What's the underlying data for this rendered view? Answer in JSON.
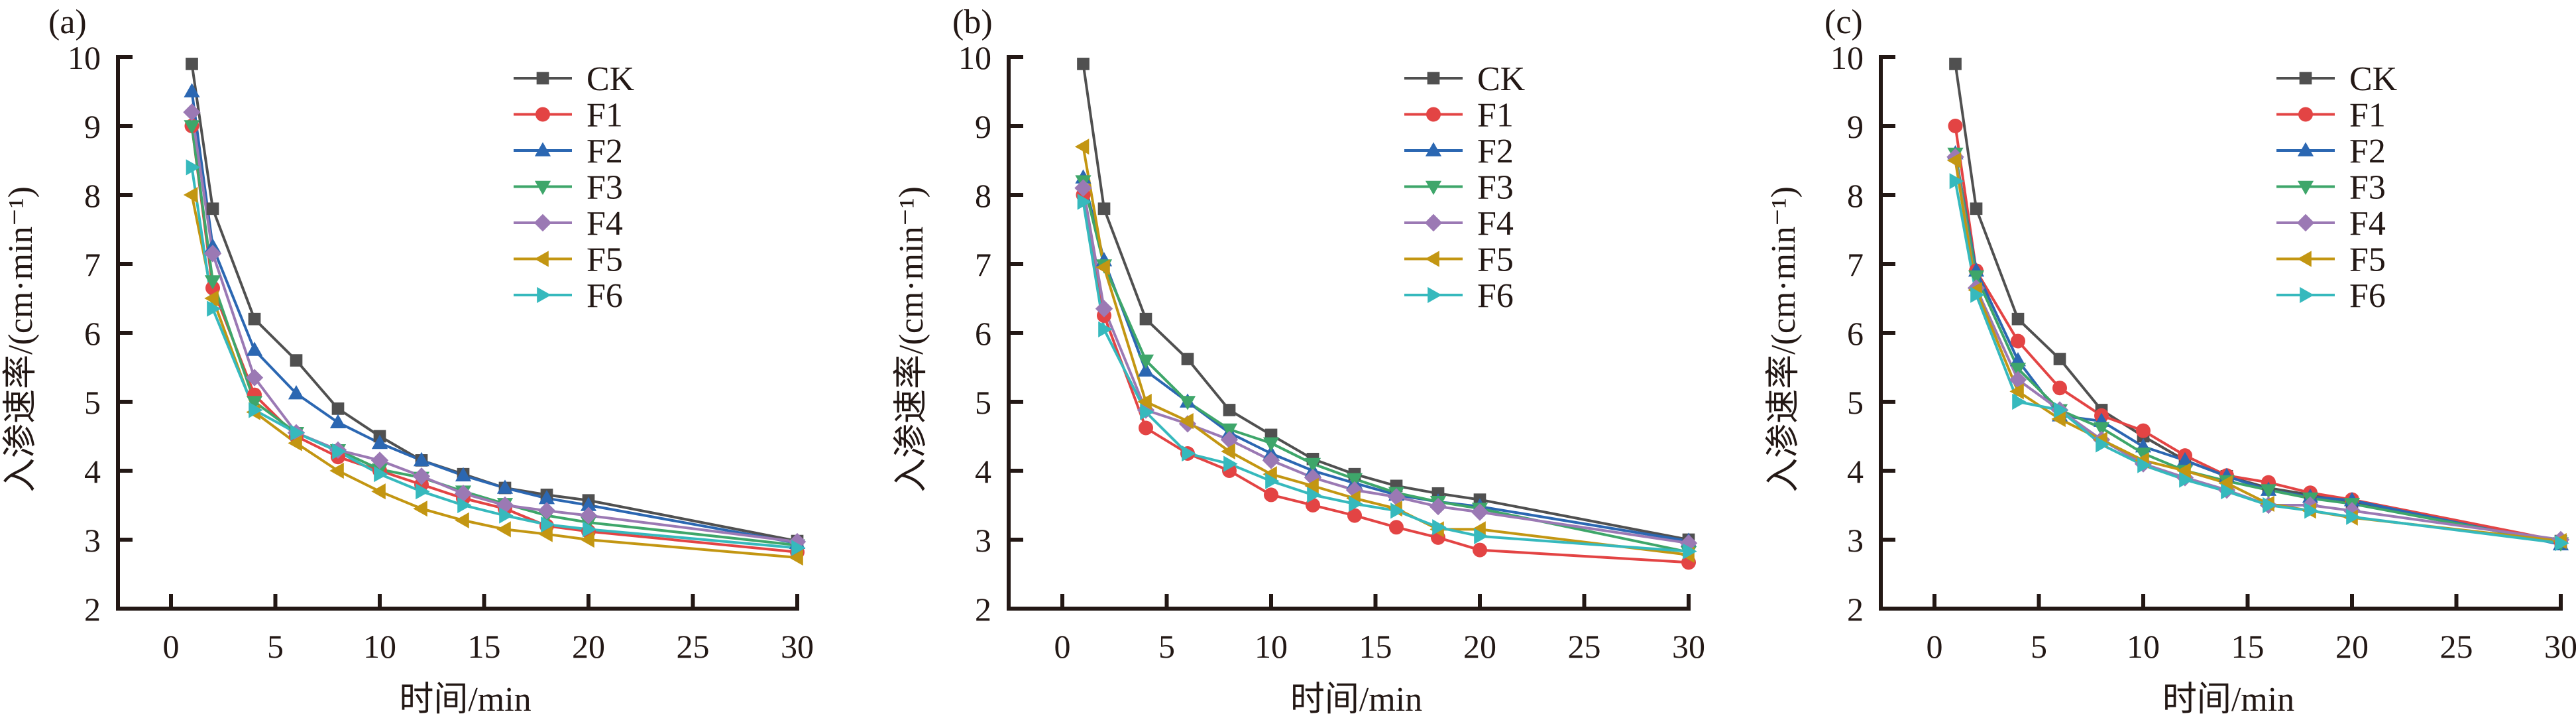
{
  "figure": {
    "panel_labels": [
      "(a)",
      "(b)",
      "(c)"
    ],
    "xlabel": "时间/min",
    "ylabel": "入渗速率/(cm·min⁻¹)"
  },
  "series_styles": [
    {
      "name": "CK",
      "color": "#505050",
      "marker": "square"
    },
    {
      "name": "F1",
      "color": "#e34444",
      "marker": "circle"
    },
    {
      "name": "F2",
      "color": "#2b67b2",
      "marker": "triangle-up"
    },
    {
      "name": "F3",
      "color": "#3ea66a",
      "marker": "triangle-down"
    },
    {
      "name": "F4",
      "color": "#9b79b4",
      "marker": "diamond"
    },
    {
      "name": "F5",
      "color": "#c39612",
      "marker": "triangle-left"
    },
    {
      "name": "F6",
      "color": "#36b9bd",
      "marker": "triangle-right"
    }
  ],
  "chart_data": [
    {
      "type": "line",
      "title": "(a)",
      "xlabel": "时间/min",
      "ylabel": "入渗速率/(cm·min⁻¹)",
      "x": [
        1,
        2,
        4,
        6,
        8,
        10,
        12,
        14,
        16,
        18,
        20,
        30
      ],
      "xlim": [
        -2.5,
        30
      ],
      "ylim": [
        2,
        10
      ],
      "xticks": [
        0,
        5,
        10,
        15,
        20,
        25,
        30
      ],
      "yticks": [
        2,
        3,
        4,
        5,
        6,
        7,
        8,
        9,
        10
      ],
      "grid": false,
      "legend": "top-right",
      "series": [
        {
          "name": "CK",
          "values": [
            9.9,
            7.8,
            6.2,
            5.6,
            4.9,
            4.5,
            4.15,
            3.95,
            3.75,
            3.65,
            3.57,
            2.98
          ]
        },
        {
          "name": "F1",
          "values": [
            9.0,
            6.65,
            5.1,
            4.5,
            4.2,
            4.0,
            3.8,
            3.6,
            3.45,
            3.2,
            3.12,
            2.82
          ]
        },
        {
          "name": "F2",
          "values": [
            9.5,
            7.25,
            5.75,
            5.12,
            4.7,
            4.4,
            4.15,
            3.93,
            3.75,
            3.6,
            3.5,
            2.95
          ]
        },
        {
          "name": "F3",
          "values": [
            9.0,
            6.75,
            5.0,
            4.55,
            4.3,
            4.02,
            3.9,
            3.7,
            3.52,
            3.35,
            3.25,
            2.92
          ]
        },
        {
          "name": "F4",
          "values": [
            9.2,
            7.15,
            5.35,
            4.55,
            4.3,
            4.15,
            3.92,
            3.67,
            3.5,
            3.42,
            3.35,
            2.97
          ]
        },
        {
          "name": "F5",
          "values": [
            8.0,
            6.5,
            4.85,
            4.4,
            4.0,
            3.7,
            3.45,
            3.28,
            3.15,
            3.08,
            3.0,
            2.74
          ]
        },
        {
          "name": "F6",
          "values": [
            8.4,
            6.35,
            4.88,
            4.55,
            4.28,
            3.95,
            3.7,
            3.5,
            3.35,
            3.22,
            3.15,
            2.88
          ]
        }
      ]
    },
    {
      "type": "line",
      "title": "(b)",
      "xlabel": "时间/min",
      "ylabel": "入渗速率/(cm·min⁻¹)",
      "x": [
        1,
        2,
        4,
        6,
        8,
        10,
        12,
        14,
        16,
        18,
        20,
        30
      ],
      "xlim": [
        -2.5,
        30
      ],
      "ylim": [
        2,
        10
      ],
      "xticks": [
        0,
        5,
        10,
        15,
        20,
        25,
        30
      ],
      "yticks": [
        2,
        3,
        4,
        5,
        6,
        7,
        8,
        9,
        10
      ],
      "grid": false,
      "legend": "top-right",
      "series": [
        {
          "name": "CK",
          "values": [
            9.9,
            7.8,
            6.2,
            5.62,
            4.88,
            4.52,
            4.17,
            3.95,
            3.78,
            3.67,
            3.58,
            3.0
          ]
        },
        {
          "name": "F1",
          "values": [
            8.0,
            6.25,
            4.62,
            4.25,
            4.0,
            3.65,
            3.5,
            3.35,
            3.18,
            3.03,
            2.85,
            2.67
          ]
        },
        {
          "name": "F2",
          "values": [
            8.25,
            7.05,
            5.45,
            5.0,
            4.55,
            4.25,
            4.0,
            3.82,
            3.65,
            3.55,
            3.48,
            2.98
          ]
        },
        {
          "name": "F3",
          "values": [
            8.2,
            6.98,
            5.6,
            5.0,
            4.6,
            4.4,
            4.1,
            3.88,
            3.68,
            3.55,
            3.45,
            2.82
          ]
        },
        {
          "name": "F4",
          "values": [
            8.1,
            6.35,
            4.88,
            4.68,
            4.45,
            4.15,
            3.9,
            3.72,
            3.62,
            3.48,
            3.4,
            2.95
          ]
        },
        {
          "name": "F5",
          "values": [
            8.7,
            6.95,
            5.0,
            4.72,
            4.28,
            3.95,
            3.78,
            3.6,
            3.45,
            3.15,
            3.15,
            2.78
          ]
        },
        {
          "name": "F6",
          "values": [
            7.9,
            6.05,
            4.85,
            4.25,
            4.1,
            3.85,
            3.65,
            3.52,
            3.42,
            3.18,
            3.05,
            2.83
          ]
        }
      ]
    },
    {
      "type": "line",
      "title": "(c)",
      "xlabel": "时间/min",
      "ylabel": "入渗速率/(cm·min⁻¹)",
      "x": [
        1,
        2,
        4,
        6,
        8,
        10,
        12,
        14,
        16,
        18,
        20,
        30
      ],
      "xlim": [
        -2.5,
        30
      ],
      "ylim": [
        2,
        10
      ],
      "xticks": [
        0,
        5,
        10,
        15,
        20,
        25,
        30
      ],
      "yticks": [
        2,
        3,
        4,
        5,
        6,
        7,
        8,
        9,
        10
      ],
      "grid": false,
      "legend": "top-right",
      "series": [
        {
          "name": "CK",
          "values": [
            9.9,
            7.8,
            6.2,
            5.62,
            4.88,
            4.5,
            4.15,
            3.92,
            3.75,
            3.65,
            3.55,
            2.98
          ]
        },
        {
          "name": "F1",
          "values": [
            9.0,
            6.9,
            5.88,
            5.2,
            4.8,
            4.58,
            4.22,
            3.93,
            3.83,
            3.68,
            3.58,
            2.98
          ]
        },
        {
          "name": "F2",
          "values": [
            8.6,
            6.9,
            5.6,
            4.8,
            4.72,
            4.35,
            4.15,
            3.92,
            3.72,
            3.62,
            3.57,
            2.93
          ]
        },
        {
          "name": "F3",
          "values": [
            8.6,
            6.82,
            5.48,
            4.88,
            4.62,
            4.25,
            4.0,
            3.85,
            3.72,
            3.6,
            3.52,
            2.95
          ]
        },
        {
          "name": "F4",
          "values": [
            8.55,
            6.65,
            5.32,
            4.88,
            4.45,
            4.1,
            3.9,
            3.72,
            3.5,
            3.5,
            3.42,
            3.0
          ]
        },
        {
          "name": "F5",
          "values": [
            8.5,
            6.62,
            5.15,
            4.75,
            4.45,
            4.15,
            4.0,
            3.82,
            3.52,
            3.42,
            3.32,
            2.98
          ]
        },
        {
          "name": "F6",
          "values": [
            8.2,
            6.55,
            5.0,
            4.88,
            4.38,
            4.08,
            3.87,
            3.7,
            3.5,
            3.42,
            3.33,
            2.95
          ]
        }
      ]
    }
  ]
}
